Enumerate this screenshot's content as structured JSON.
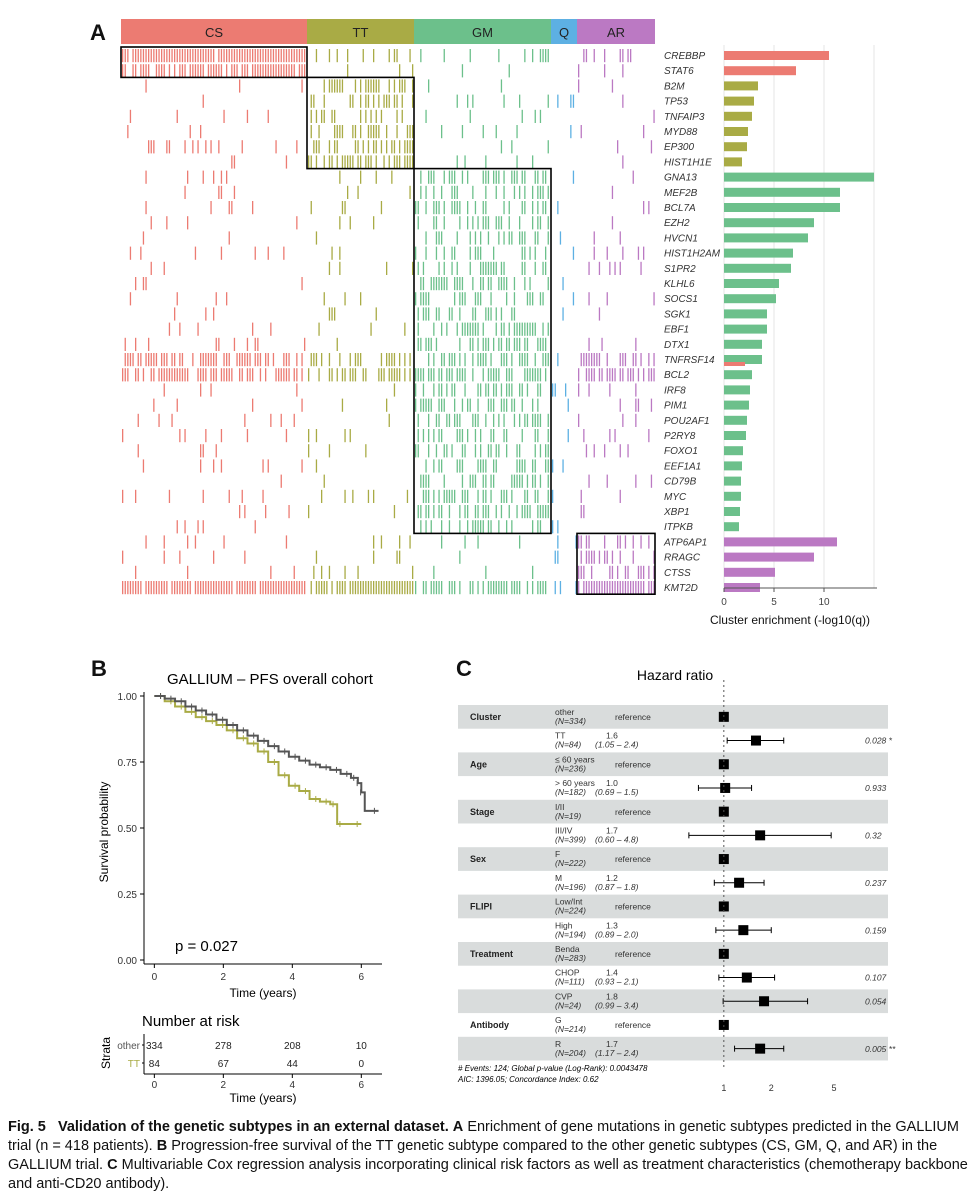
{
  "panels": {
    "a": "A",
    "b": "B",
    "c": "C"
  },
  "colors": {
    "CS": "#ec7b72",
    "TT": "#a9ab45",
    "GM": "#6cc08b",
    "Q": "#5db0e3",
    "AR": "#bb79c3"
  },
  "chart_data": [
    {
      "type": "heatmap",
      "panel": "A",
      "clusters": [
        "CS",
        "TT",
        "GM",
        "Q",
        "AR"
      ],
      "genes": [
        "CREBBP",
        "STAT6",
        "B2M",
        "TP53",
        "TNFAIP3",
        "MYD88",
        "EP300",
        "HIST1H1E",
        "GNA13",
        "MEF2B",
        "BCL7A",
        "EZH2",
        "HVCN1",
        "HIST1H2AM",
        "S1PR2",
        "KLHL6",
        "SOCS1",
        "SGK1",
        "EBF1",
        "DTX1",
        "TNFRSF14",
        "BCL2",
        "IRF8",
        "PIM1",
        "POU2AF1",
        "P2RY8",
        "FOXO1",
        "EEF1A1",
        "CD79B",
        "MYC",
        "XBP1",
        "ITPKB",
        "ATP6AP1",
        "RRAGC",
        "CTSS",
        "KMT2D"
      ]
    },
    {
      "type": "bar",
      "panel": "A",
      "orientation": "horizontal",
      "categories": [
        "CREBBP",
        "STAT6",
        "B2M",
        "TP53",
        "TNFAIP3",
        "MYD88",
        "EP300",
        "HIST1H1E",
        "GNA13",
        "MEF2B",
        "BCL7A",
        "EZH2",
        "HVCN1",
        "HIST1H2AM",
        "S1PR2",
        "KLHL6",
        "SOCS1",
        "SGK1",
        "EBF1",
        "DTX1",
        "TNFRSF14",
        "BCL2",
        "IRF8",
        "PIM1",
        "POU2AF1",
        "P2RY8",
        "FOXO1",
        "EEF1A1",
        "CD79B",
        "MYC",
        "XBP1",
        "ITPKB",
        "ATP6AP1",
        "RRAGC",
        "CTSS",
        "KMT2D"
      ],
      "values": [
        10.5,
        7.2,
        3.4,
        3.0,
        2.8,
        2.4,
        2.3,
        1.8,
        15.0,
        11.6,
        11.6,
        9.0,
        8.4,
        6.9,
        6.7,
        5.5,
        5.2,
        4.3,
        4.3,
        3.8,
        3.8,
        2.8,
        2.6,
        2.5,
        2.3,
        2.2,
        1.9,
        1.8,
        1.7,
        1.7,
        1.6,
        1.5,
        11.3,
        9.0,
        5.1,
        3.6
      ],
      "extra_bars": [
        {
          "category": "TNFRSF14",
          "cluster": "CS",
          "value": 2.1
        }
      ],
      "bar_clusters": [
        "CS",
        "CS",
        "TT",
        "TT",
        "TT",
        "TT",
        "TT",
        "TT",
        "GM",
        "GM",
        "GM",
        "GM",
        "GM",
        "GM",
        "GM",
        "GM",
        "GM",
        "GM",
        "GM",
        "GM",
        "GM",
        "GM",
        "GM",
        "GM",
        "GM",
        "GM",
        "GM",
        "GM",
        "GM",
        "GM",
        "GM",
        "GM",
        "AR",
        "AR",
        "AR",
        "AR"
      ],
      "xlabel": "Cluster enrichment (-log10(q))",
      "xticks": [
        "0",
        "5",
        "10"
      ],
      "xlim": [
        0,
        15.3
      ],
      "grid": true
    },
    {
      "type": "line",
      "panel": "B",
      "title": "GALLIUM – PFS overall cohort",
      "xlabel": "Time (years)",
      "ylabel": "Survival probability",
      "xlim": [
        -0.3,
        6.6
      ],
      "ylim": [
        0,
        1
      ],
      "xticks": [
        "0",
        "2",
        "4",
        "6"
      ],
      "yticks": [
        "0.00",
        "0.25",
        "0.50",
        "0.75",
        "1.00"
      ],
      "pvalue": "p = 0.027",
      "series": [
        {
          "name": "other",
          "x": [
            0,
            0.3,
            0.6,
            0.9,
            1.2,
            1.5,
            1.8,
            2.1,
            2.4,
            2.7,
            3.0,
            3.3,
            3.6,
            3.9,
            4.2,
            4.5,
            4.8,
            5.1,
            5.4,
            5.7,
            5.9,
            6.0,
            6.1,
            6.5
          ],
          "y": [
            1.0,
            0.99,
            0.98,
            0.96,
            0.945,
            0.93,
            0.91,
            0.89,
            0.87,
            0.85,
            0.83,
            0.81,
            0.79,
            0.77,
            0.755,
            0.74,
            0.73,
            0.72,
            0.705,
            0.69,
            0.67,
            0.635,
            0.565,
            0.565
          ]
        },
        {
          "name": "TT",
          "x": [
            0,
            0.3,
            0.6,
            0.9,
            1.2,
            1.5,
            1.8,
            2.1,
            2.4,
            2.7,
            3.0,
            3.3,
            3.6,
            3.9,
            4.2,
            4.5,
            4.8,
            5.1,
            5.3,
            5.5,
            6.0
          ],
          "y": [
            1.0,
            0.98,
            0.96,
            0.94,
            0.92,
            0.905,
            0.89,
            0.87,
            0.84,
            0.82,
            0.79,
            0.75,
            0.7,
            0.66,
            0.64,
            0.61,
            0.6,
            0.59,
            0.515,
            0.515,
            0.515
          ]
        }
      ],
      "risk_table": {
        "title": "Number at risk",
        "strata_label": "Strata",
        "xlabel": "Time (years)",
        "xticks": [
          "0",
          "2",
          "4",
          "6"
        ],
        "rows": [
          {
            "label": "other",
            "values": [
              "334",
              "278",
              "208",
              "10"
            ]
          },
          {
            "label": "TT",
            "values": [
              "84",
              "67",
              "44",
              "0"
            ]
          }
        ]
      }
    },
    {
      "type": "scatter",
      "panel": "C",
      "title": "Hazard ratio",
      "xscale": "log",
      "xticks": [
        "1",
        "2",
        "5"
      ],
      "xlim": [
        0.34,
        6.8
      ],
      "rows": [
        {
          "variable": "Cluster",
          "level": "other",
          "n": "(N=334)",
          "hr_text": "reference",
          "ci_text": "",
          "p": "",
          "hr": 1.0,
          "lo": null,
          "hi": null
        },
        {
          "variable": "",
          "level": "TT",
          "n": "(N=84)",
          "hr_text": "1.6",
          "ci_text": "(1.05 – 2.4)",
          "p": "0.028 *",
          "hr": 1.6,
          "lo": 1.05,
          "hi": 2.4
        },
        {
          "variable": "Age",
          "level": "≤ 60 years",
          "n": "(N=236)",
          "hr_text": "reference",
          "ci_text": "",
          "p": "",
          "hr": 1.0,
          "lo": null,
          "hi": null
        },
        {
          "variable": "",
          "level": "> 60 years",
          "n": "(N=182)",
          "hr_text": "1.0",
          "ci_text": "(0.69 – 1.5)",
          "p": "0.933",
          "hr": 1.02,
          "lo": 0.69,
          "hi": 1.5
        },
        {
          "variable": "Stage",
          "level": "I/II",
          "n": "(N=19)",
          "hr_text": "reference",
          "ci_text": "",
          "p": "",
          "hr": 1.0,
          "lo": null,
          "hi": null
        },
        {
          "variable": "",
          "level": "III/IV",
          "n": "(N=399)",
          "hr_text": "1.7",
          "ci_text": "(0.60 – 4.8)",
          "p": "0.32",
          "hr": 1.7,
          "lo": 0.6,
          "hi": 4.8
        },
        {
          "variable": "Sex",
          "level": "F",
          "n": "(N=222)",
          "hr_text": "reference",
          "ci_text": "",
          "p": "",
          "hr": 1.0,
          "lo": null,
          "hi": null
        },
        {
          "variable": "",
          "level": "M",
          "n": "(N=196)",
          "hr_text": "1.2",
          "ci_text": "(0.87 – 1.8)",
          "p": "0.237",
          "hr": 1.25,
          "lo": 0.87,
          "hi": 1.8
        },
        {
          "variable": "FLIPI",
          "level": "Low/Int",
          "n": "(N=224)",
          "hr_text": "reference",
          "ci_text": "",
          "p": "",
          "hr": 1.0,
          "lo": null,
          "hi": null
        },
        {
          "variable": "",
          "level": "High",
          "n": "(N=194)",
          "hr_text": "1.3",
          "ci_text": "(0.89 – 2.0)",
          "p": "0.159",
          "hr": 1.33,
          "lo": 0.89,
          "hi": 2.0
        },
        {
          "variable": "Treatment",
          "level": "Benda",
          "n": "(N=283)",
          "hr_text": "reference",
          "ci_text": "",
          "p": "",
          "hr": 1.0,
          "lo": null,
          "hi": null
        },
        {
          "variable": "",
          "level": "CHOP",
          "n": "(N=111)",
          "hr_text": "1.4",
          "ci_text": "(0.93 – 2.1)",
          "p": "0.107",
          "hr": 1.4,
          "lo": 0.93,
          "hi": 2.1
        },
        {
          "variable": "",
          "level": "CVP",
          "n": "(N=24)",
          "hr_text": "1.8",
          "ci_text": "(0.99 – 3.4)",
          "p": "0.054",
          "hr": 1.8,
          "lo": 0.99,
          "hi": 3.4
        },
        {
          "variable": "Antibody",
          "level": "G",
          "n": "(N=214)",
          "hr_text": "reference",
          "ci_text": "",
          "p": "",
          "hr": 1.0,
          "lo": null,
          "hi": null
        },
        {
          "variable": "",
          "level": "R",
          "n": "(N=204)",
          "hr_text": "1.7",
          "ci_text": "(1.17 – 2.4)",
          "p": "0.005 **",
          "hr": 1.7,
          "lo": 1.17,
          "hi": 2.4
        }
      ],
      "footnote1": "# Events: 124; Global p-value (Log-Rank): 0.0043478",
      "footnote2": "AIC: 1396.05; Concordance Index: 0.62"
    }
  ],
  "caption": {
    "fig": "Fig. 5",
    "title": "Validation of the genetic subtypes in an external dataset.",
    "a_label": "A",
    "a_text": "Enrichment of gene mutations in genetic subtypes predicted in the GALLIUM trial (n = 418 patients).",
    "b_label": "B",
    "b_text": "Progression-free survival of the TT genetic subtype compared to the other genetic subtypes (CS, GM, Q, and AR) in the GALLIUM trial.",
    "c_label": "C",
    "c_text": "Multivariable Cox regression analysis incorporating clinical risk factors as well as treatment characteristics (chemotherapy backbone and anti-CD20 antibody)."
  }
}
